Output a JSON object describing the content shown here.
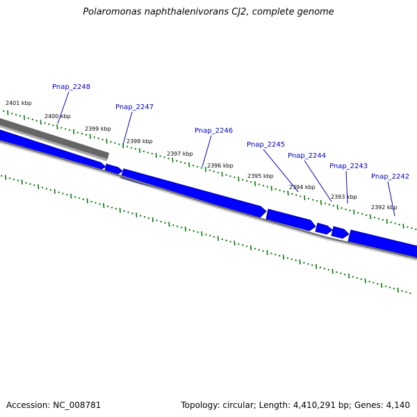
{
  "title": "Polaromonas naphthalenivorans CJ2, complete genome",
  "footer": {
    "accession": "Accession: NC_008781",
    "summary": "Topology: circular; Length: 4,410,291 bp; Genes: 4,140"
  },
  "colors": {
    "gene": "#0000ff",
    "gene_dark": "#0000aa",
    "grey_track": "#666666",
    "backbone": "#777777",
    "ticks": "#007700",
    "label": "#0000bb"
  },
  "scale_labels": [
    "2401 kbp",
    "2400 kbp",
    "2399 kbp",
    "2398 kbp",
    "2397 kbp",
    "2396 kbp",
    "2395 kbp",
    "2394 kbp",
    "2393 kbp",
    "2392 kbp"
  ],
  "genes": [
    {
      "name": "Pnap_2248"
    },
    {
      "name": "Pnap_2247"
    },
    {
      "name": "Pnap_2246"
    },
    {
      "name": "Pnap_2245"
    },
    {
      "name": "Pnap_2244"
    },
    {
      "name": "Pnap_2243"
    },
    {
      "name": "Pnap_2242"
    }
  ]
}
